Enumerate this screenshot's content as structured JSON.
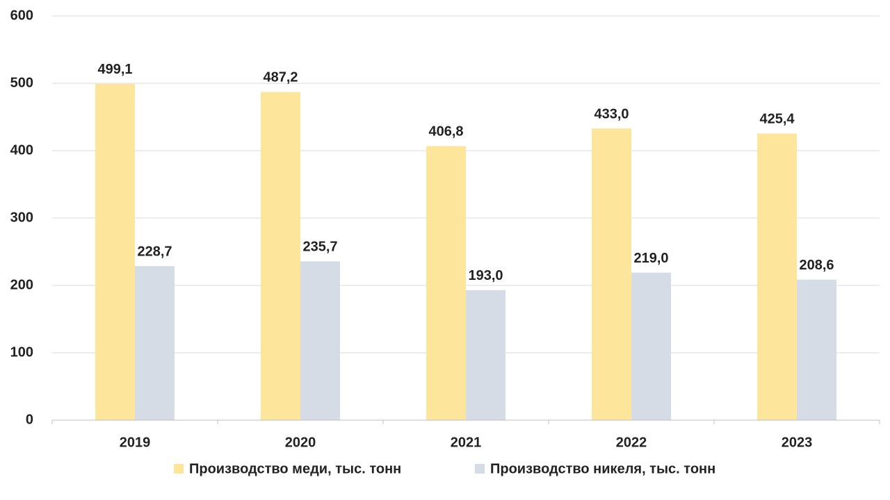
{
  "chart_data": {
    "type": "bar",
    "categories": [
      "2019",
      "2020",
      "2021",
      "2022",
      "2023"
    ],
    "series": [
      {
        "name": "Производство меди, тыс. тонн",
        "color": "#fde59b",
        "values": [
          499.1,
          487.2,
          406.8,
          433.0,
          425.4
        ],
        "value_labels": [
          "499,1",
          "487,2",
          "406,8",
          "433,0",
          "425,4"
        ]
      },
      {
        "name": "Производство никеля, тыс. тонн",
        "color": "#d6dce5",
        "values": [
          228.7,
          235.7,
          193.0,
          219.0,
          208.6
        ],
        "value_labels": [
          "228,7",
          "235,7",
          "193,0",
          "219,0",
          "208,6"
        ]
      }
    ],
    "ylim": [
      0,
      600
    ],
    "yticks": [
      0,
      100,
      200,
      300,
      400,
      500,
      600
    ],
    "grid": true
  }
}
